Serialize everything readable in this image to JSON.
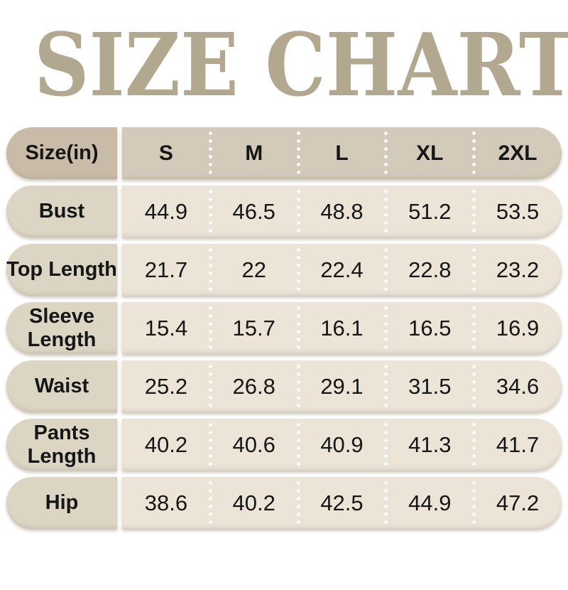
{
  "title": "SIZE CHART",
  "colors": {
    "title_text": "#b2a88f",
    "header_label_bg": "#c8bca8",
    "header_cell_bg": "#d3cab9",
    "row_label_bg": "#ddd5c4",
    "row_cell_bg": "#ebe4d7",
    "table_text": "#161616",
    "page_bg": "#ffffff",
    "separator_dots": "#ffffff"
  },
  "table": {
    "unit_label": "Size(in)",
    "sizes": [
      "S",
      "M",
      "L",
      "XL",
      "2XL"
    ],
    "rows": [
      {
        "label": "Bust",
        "values": [
          "44.9",
          "46.5",
          "48.8",
          "51.2",
          "53.5"
        ]
      },
      {
        "label": "Top Length",
        "values": [
          "21.7",
          "22",
          "22.4",
          "22.8",
          "23.2"
        ]
      },
      {
        "label": "Sleeve Length",
        "values": [
          "15.4",
          "15.7",
          "16.1",
          "16.5",
          "16.9"
        ]
      },
      {
        "label": "Waist",
        "values": [
          "25.2",
          "26.8",
          "29.1",
          "31.5",
          "34.6"
        ]
      },
      {
        "label": "Pants Length",
        "values": [
          "40.2",
          "40.6",
          "40.9",
          "41.3",
          "41.7"
        ]
      },
      {
        "label": "Hip",
        "values": [
          "38.6",
          "40.2",
          "42.5",
          "44.9",
          "47.2"
        ]
      }
    ]
  },
  "chart_data": {
    "type": "table",
    "title": "SIZE CHART",
    "unit": "in",
    "columns": [
      "Size(in)",
      "S",
      "M",
      "L",
      "XL",
      "2XL"
    ],
    "rows": [
      [
        "Bust",
        44.9,
        46.5,
        48.8,
        51.2,
        53.5
      ],
      [
        "Top Length",
        21.7,
        22,
        22.4,
        22.8,
        23.2
      ],
      [
        "Sleeve Length",
        15.4,
        15.7,
        16.1,
        16.5,
        16.9
      ],
      [
        "Waist",
        25.2,
        26.8,
        29.1,
        31.5,
        34.6
      ],
      [
        "Pants Length",
        40.2,
        40.6,
        40.9,
        41.3,
        41.7
      ],
      [
        "Hip",
        38.6,
        40.2,
        42.5,
        44.9,
        47.2
      ]
    ]
  }
}
